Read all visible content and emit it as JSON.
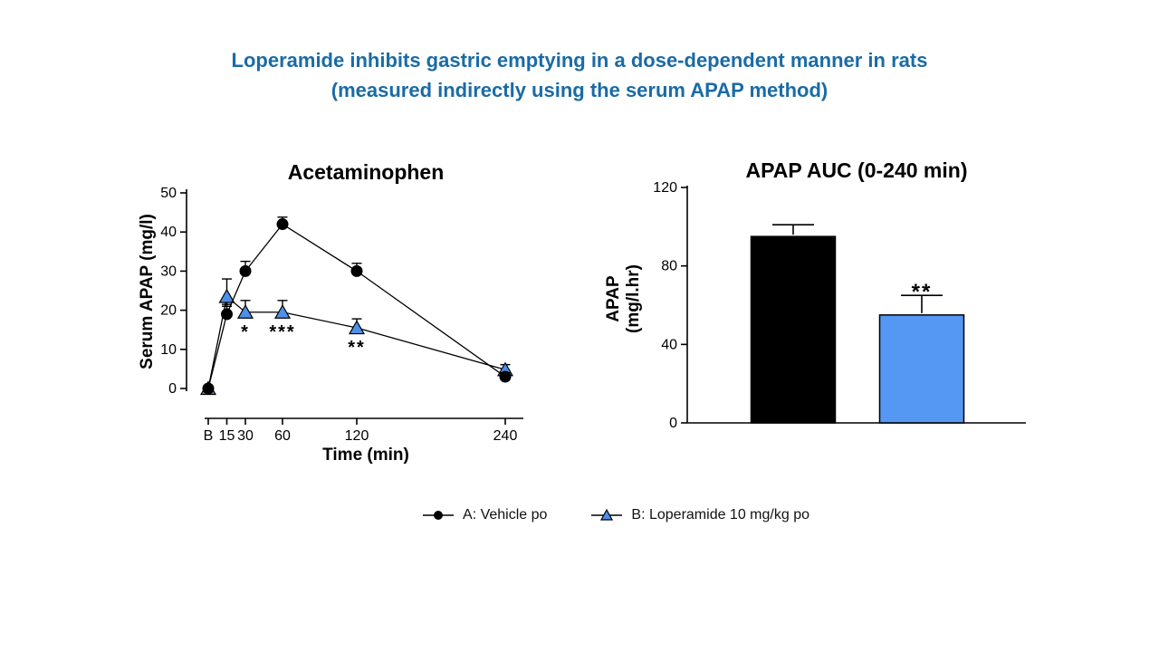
{
  "slide": {
    "title_line1": "Loperamide inhibits gastric emptying in a dose-dependent manner in rats",
    "title_line2": "(measured indirectly using the serum APAP method)",
    "title_color": "#1A6BA6"
  },
  "legend": {
    "items": [
      {
        "label": "A: Vehicle po",
        "marker": "circle",
        "color": "#000000"
      },
      {
        "label": "B: Loperamide 10 mg/kg po",
        "marker": "triangle",
        "color": "#4C90E8"
      }
    ]
  },
  "chart_data": [
    {
      "type": "line",
      "title": "Acetaminophen",
      "xlabel": "Time (min)",
      "ylabel": "Serum APAP (mg/l)",
      "x_tick_labels": [
        "B",
        "15",
        "30",
        "60",
        "120",
        "240"
      ],
      "x_values": [
        0,
        15,
        30,
        60,
        120,
        240
      ],
      "y_ticks": [
        0,
        10,
        20,
        30,
        40,
        50
      ],
      "ylim": [
        0,
        50
      ],
      "grid": false,
      "star_color": "#74A8F2",
      "series": [
        {
          "name": "A: Vehicle po",
          "marker": "circle",
          "color": "#000000",
          "values": [
            0,
            19,
            30,
            42,
            30,
            3
          ],
          "errors_up": [
            0,
            2.5,
            2.5,
            1.8,
            2,
            1
          ],
          "errors_down": [
            0,
            0,
            0,
            0,
            0,
            0
          ]
        },
        {
          "name": "B: Loperamide 10 mg/kg po",
          "marker": "triangle",
          "color": "#4C90E8",
          "values": [
            0,
            23.5,
            19.5,
            19.5,
            15.5,
            4.8
          ],
          "errors_up": [
            0,
            4.5,
            3,
            3,
            2.3,
            1.3
          ],
          "errors_down": [
            0,
            2.5,
            0,
            0,
            0,
            0
          ]
        }
      ],
      "annotations": [
        {
          "x": 30,
          "text": "*"
        },
        {
          "x": 60,
          "text": "***"
        },
        {
          "x": 120,
          "text": "**"
        }
      ]
    },
    {
      "type": "bar",
      "title": "APAP AUC (0-240 min)",
      "ylabel_lines": [
        "APAP",
        "(mg/l.hr)"
      ],
      "categories": [
        "A: Vehicle po",
        "B: Loperamide 10 mg/kg po"
      ],
      "values": [
        95,
        55
      ],
      "errors": [
        6,
        10
      ],
      "bar_colors": [
        "#000000",
        "#5598F4"
      ],
      "y_ticks": [
        0,
        40,
        80,
        120
      ],
      "ylim": [
        0,
        120
      ],
      "grid": false,
      "annotations": [
        {
          "bar": 1,
          "text": "**"
        }
      ]
    }
  ]
}
